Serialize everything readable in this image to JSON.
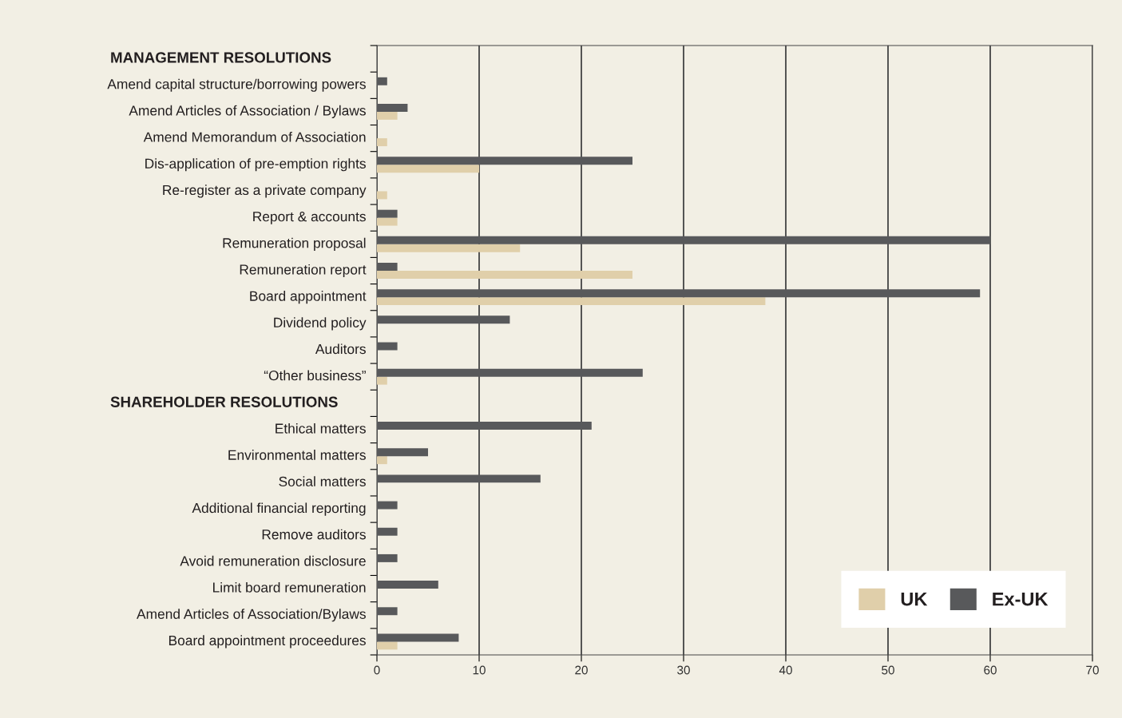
{
  "chart_data": {
    "type": "bar",
    "orientation": "horizontal",
    "annotations": [
      "MANAGEMENT RESOLUTIONS",
      "SHAREHOLDER RESOLUTIONS"
    ],
    "categories": [
      null,
      "Amend capital structure/borrowing powers",
      "Amend Articles of Association / Bylaws",
      "Amend Memorandum of Association",
      "Dis-application of pre-emption rights",
      "Re-register as a private company",
      "Report & accounts",
      "Remuneration proposal",
      "Remuneration report",
      "Board appointment",
      "Dividend policy",
      "Auditors",
      "“Other business”",
      null,
      "Ethical matters",
      "Environmental matters",
      "Social matters",
      "Additional financial reporting",
      "Remove auditors",
      "Avoid remuneration disclosure",
      "Limit board remuneration",
      "Amend Articles of Association/Bylaws",
      "Board appointment proceedures"
    ],
    "series": [
      {
        "name": "UK",
        "color": "#e0cfaa",
        "values": [
          null,
          null,
          2,
          1,
          10,
          1,
          2,
          14,
          25,
          38,
          null,
          null,
          1,
          null,
          null,
          1,
          null,
          null,
          null,
          null,
          null,
          null,
          2
        ]
      },
      {
        "name": "Ex-UK",
        "color": "#58595b",
        "values": [
          null,
          1,
          3,
          null,
          25,
          null,
          2,
          60,
          2,
          59,
          13,
          2,
          26,
          null,
          21,
          5,
          16,
          2,
          2,
          2,
          6,
          2,
          8
        ]
      }
    ],
    "xlim": [
      0,
      70
    ],
    "xticks": [
      0,
      10,
      20,
      30,
      40,
      50,
      60,
      70
    ],
    "grid": "x",
    "legend": "bottom right"
  }
}
